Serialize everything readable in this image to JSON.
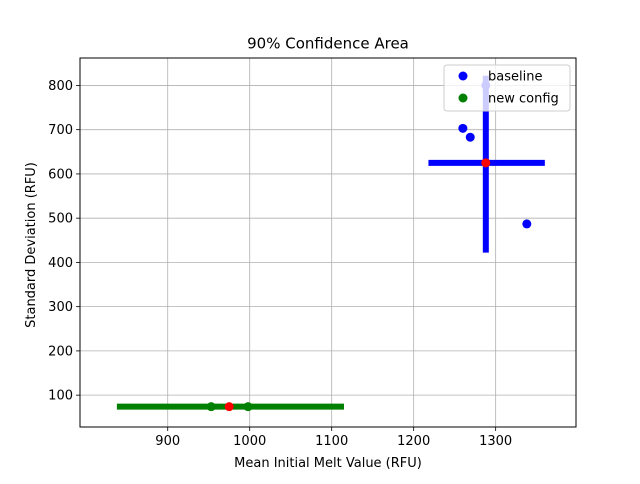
{
  "chart_data": {
    "type": "scatter",
    "title": "90% Confidence Area",
    "xlabel": "Mean Initial Melt Value (RFU)",
    "ylabel": "Standard Deviation (RFU)",
    "xlim": [
      793,
      1398
    ],
    "ylim": [
      28,
      862
    ],
    "xticks": [
      900,
      1000,
      1100,
      1200,
      1300
    ],
    "yticks": [
      100,
      200,
      300,
      400,
      500,
      600,
      700,
      800
    ],
    "grid": true,
    "legend_position": "top-right",
    "series": [
      {
        "name": "baseline",
        "color": "#0000ff",
        "points": [
          [
            1260,
            703
          ],
          [
            1269,
            683
          ],
          [
            1288,
            800
          ],
          [
            1338,
            487
          ]
        ],
        "center": [
          1288,
          625
        ],
        "interval_x": [
          1218,
          1360
        ],
        "interval_y": [
          422,
          822
        ]
      },
      {
        "name": "new config",
        "color": "#008000",
        "points": [
          [
            953,
            74
          ],
          [
            998,
            74
          ]
        ],
        "center": [
          975,
          74
        ],
        "interval_x": [
          838,
          1115
        ],
        "interval_y": [
          68,
          79
        ]
      }
    ],
    "center_color": "#ff0000"
  }
}
